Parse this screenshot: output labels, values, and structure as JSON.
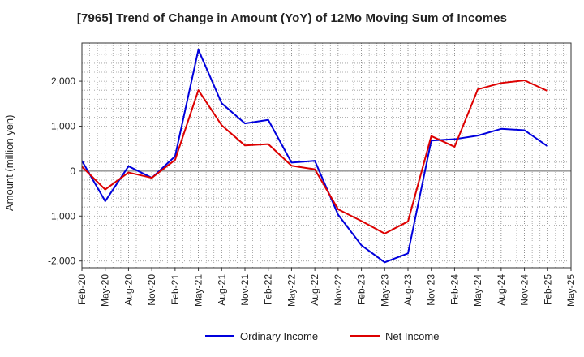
{
  "chart_data": {
    "type": "line",
    "title": "[7965]  Trend of Change in Amount (YoY) of 12Mo Moving Sum of Incomes",
    "xlabel": "",
    "ylabel": "Amount (million yen)",
    "ylim": [
      -2150,
      2850
    ],
    "yticks": [
      -2000,
      -1000,
      0,
      1000,
      2000
    ],
    "ytick_labels": [
      "-2,000",
      "-1,000",
      "0",
      "1,000",
      "2,000"
    ],
    "grid": true,
    "legend_position": "bottom-center",
    "categories": [
      "Feb-20",
      "May-20",
      "Aug-20",
      "Nov-20",
      "Feb-21",
      "May-21",
      "Aug-21",
      "Nov-21",
      "Feb-22",
      "May-22",
      "Aug-22",
      "Nov-22",
      "Feb-23",
      "May-23",
      "Aug-23",
      "Nov-23",
      "Feb-24",
      "May-24",
      "Aug-24",
      "Nov-24",
      "Feb-25",
      "May-25"
    ],
    "series": [
      {
        "name": "Ordinary Income",
        "color": "#0000dd",
        "values": [
          230,
          -670,
          110,
          -150,
          330,
          2700,
          1510,
          1060,
          1140,
          190,
          230,
          -970,
          -1650,
          -2030,
          -1830,
          680,
          710,
          790,
          940,
          910,
          550,
          null
        ]
      },
      {
        "name": "Net Income",
        "color": "#dd0000",
        "values": [
          100,
          -410,
          -30,
          -150,
          250,
          1800,
          1020,
          570,
          600,
          120,
          40,
          -850,
          -1110,
          -1390,
          -1120,
          780,
          540,
          1820,
          1960,
          2020,
          1780,
          null
        ]
      }
    ]
  }
}
